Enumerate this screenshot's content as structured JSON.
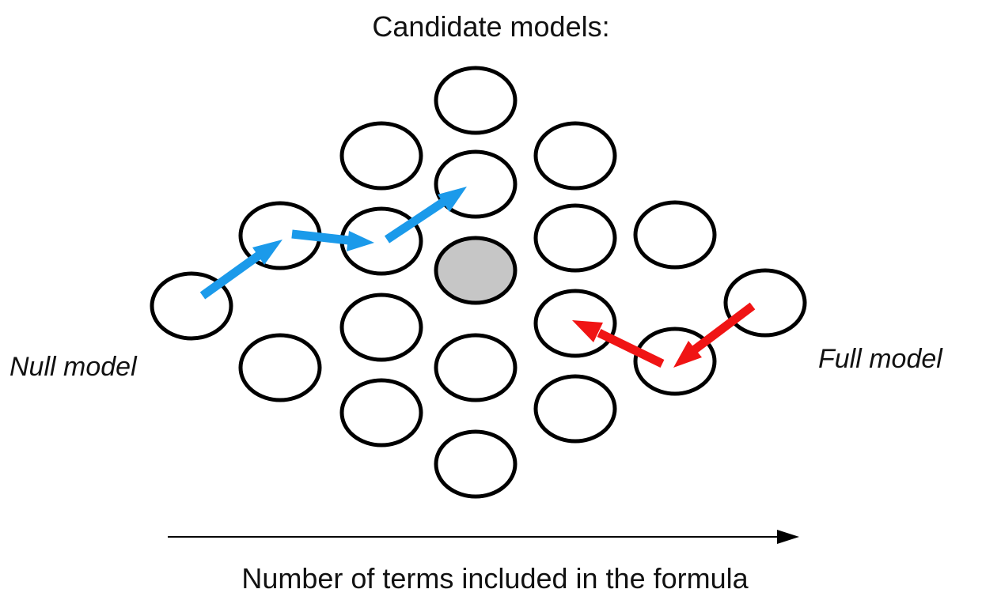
{
  "title": "Candidate models:",
  "null_model_label": "Null model",
  "full_model_label": "Full model",
  "axis_label": "Number of terms included in the formula",
  "colors": {
    "forward_arrow": "#1b9aea",
    "backward_arrow": "#f01414",
    "highlighted_model_fill": "#c6c6c6",
    "model_outline": "#000000"
  }
}
